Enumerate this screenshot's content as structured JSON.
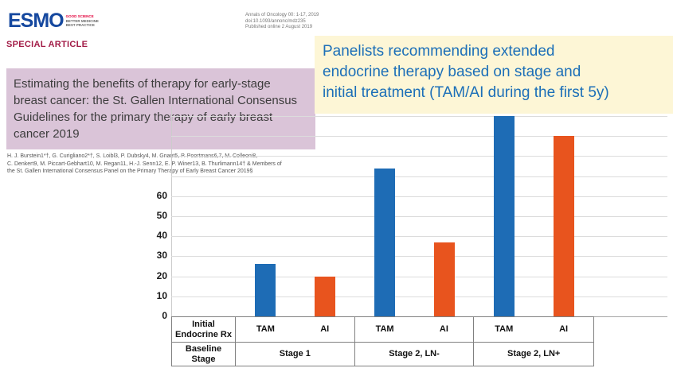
{
  "paper": {
    "logo_text": "ESMO",
    "tagline_lines": [
      "GOOD SCIENCE",
      "BETTER MEDICINE",
      "BEST PRACTICE"
    ],
    "journal_lines": [
      "Annals of Oncology 00: 1-17, 2019",
      "doi:10.1093/annonc/mdz235",
      "Published online 2 August 2019"
    ],
    "section_label": "SPECIAL ARTICLE",
    "title_lines": [
      "Estimating the benefits of therapy for early-stage",
      "breast cancer: the St. Gallen International Consensus",
      "Guidelines for the primary therapy of early breast",
      "cancer 2019"
    ],
    "author_lines": [
      "H. J. Burstein1*†, G. Curigliano2*†, S. Loibl3, P. Dubsky4, M. Gnant5, P. Poortmans6,7, M. Colleoni8,",
      "C. Denkert9, M. Piccart-Gebhart10, M. Regan11, H.-J. Senn12, E. P. Winer13, B. Thurlimann14† & Members of",
      "the St. Gallen International Consensus Panel on the Primary Therapy of Early Breast Cancer 2019§"
    ]
  },
  "banner": {
    "lines": [
      "Panelists recommending extended",
      "endocrine therapy based on stage and",
      "initial treatment (TAM/AI during the first 5y)"
    ],
    "bg_color": "#fdf6d6",
    "text_color": "#1c6fb8"
  },
  "chart_data": {
    "type": "bar",
    "title": "Panelists recommending extended endocrine therapy based on stage and initial treatment (TAM/AI during the first 5y)",
    "categories": [
      "Stage 1",
      "Stage 2, LN-",
      "Stage 2, LN+"
    ],
    "series": [
      {
        "name": "TAM",
        "color": "#1e6cb5",
        "values": [
          26,
          74,
          100
        ]
      },
      {
        "name": "AI",
        "color": "#e8541e",
        "values": [
          20,
          37,
          90
        ]
      }
    ],
    "xlabel": "",
    "ylabel": "",
    "ylim": [
      0,
      105
    ],
    "ytick_labels": [
      0,
      10,
      20,
      30,
      40,
      50,
      60
    ],
    "gridline_values": [
      10,
      20,
      30,
      40,
      50,
      60,
      70,
      80,
      90,
      100
    ],
    "grid": true,
    "legend": "none",
    "table": {
      "row1_header": "Initial Endocrine Rx",
      "row2_header": "Baseline Stage"
    }
  }
}
